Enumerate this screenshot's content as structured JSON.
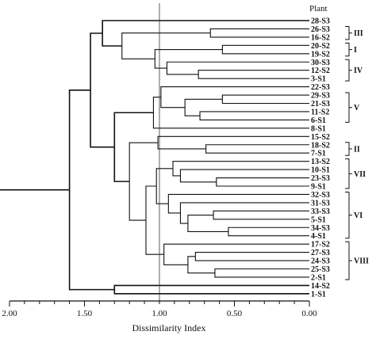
{
  "header": "Plant",
  "xlabel": "Dissimilarity Index",
  "ticks": [
    "2.00",
    "1.50",
    "1.00",
    "0.50",
    "0.00"
  ],
  "reference_value": 1.0,
  "chart_data": {
    "type": "dendrogram",
    "xlabel": "Dissimilarity Index",
    "xlim": [
      2.0,
      0.0
    ],
    "reference_line": 1.0,
    "leaves": [
      "28-S3",
      "26-S3",
      "16-S2",
      "20-S2",
      "19-S2",
      "30-S3",
      "12-S2",
      "3-S1",
      "22-S3",
      "29-S3",
      "21-S3",
      "11-S2",
      "6-S1",
      "8-S1",
      "15-S2",
      "18-S2",
      "7-S1",
      "13-S2",
      "10-S1",
      "23-S3",
      "9-S1",
      "32-S3",
      "31-S3",
      "33-S3",
      "5-S1",
      "34-S3",
      "4-S1",
      "17-S2",
      "27-S3",
      "24-S3",
      "25-S3",
      "2-S1",
      "14-S2",
      "1-S1"
    ],
    "groups": [
      {
        "label": "III",
        "from": 1,
        "to": 2
      },
      {
        "label": "I",
        "from": 3,
        "to": 4
      },
      {
        "label": "IV",
        "from": 5,
        "to": 7
      },
      {
        "label": "V",
        "from": 9,
        "to": 12
      },
      {
        "label": "II",
        "from": 15,
        "to": 16
      },
      {
        "label": "VII",
        "from": 17,
        "to": 20
      },
      {
        "label": "VI",
        "from": 21,
        "to": 26
      },
      {
        "label": "VIII",
        "from": 27,
        "to": 31
      }
    ],
    "merges": [
      {
        "a": "L1",
        "b": "L2",
        "h": 0.66
      },
      {
        "a": "L3",
        "b": "L4",
        "h": 0.58
      },
      {
        "a": "L6",
        "b": "L7",
        "h": 0.74
      },
      {
        "a": "L5",
        "b": "M3",
        "h": 0.95
      },
      {
        "a": "M2",
        "b": "M4",
        "h": 1.03
      },
      {
        "a": "M1",
        "b": "M5",
        "h": 1.25
      },
      {
        "a": "L0",
        "b": "M6",
        "h": 1.38
      },
      {
        "a": "L9",
        "b": "L10",
        "h": 0.58
      },
      {
        "a": "L11",
        "b": "L12",
        "h": 0.73
      },
      {
        "a": "M8",
        "b": "M9",
        "h": 0.83
      },
      {
        "a": "L8",
        "b": "M10",
        "h": 0.99
      },
      {
        "a": "M11",
        "b": "L13",
        "h": 1.04
      },
      {
        "a": "L15",
        "b": "L16",
        "h": 0.69
      },
      {
        "a": "L14",
        "b": "M13",
        "h": 1.01
      },
      {
        "a": "L19",
        "b": "L20",
        "h": 0.62
      },
      {
        "a": "L18",
        "b": "M15",
        "h": 0.86
      },
      {
        "a": "L17",
        "b": "M16",
        "h": 0.91
      },
      {
        "a": "L23",
        "b": "L24",
        "h": 0.64
      },
      {
        "a": "L25",
        "b": "L26",
        "h": 0.54
      },
      {
        "a": "M18",
        "b": "M19",
        "h": 0.81
      },
      {
        "a": "L22",
        "b": "M20",
        "h": 0.86
      },
      {
        "a": "L21",
        "b": "M21",
        "h": 0.94
      },
      {
        "a": "M17",
        "b": "M22",
        "h": 1.02
      },
      {
        "a": "L28",
        "b": "L29",
        "h": 0.76
      },
      {
        "a": "L30",
        "b": "L31",
        "h": 0.63
      },
      {
        "a": "M24",
        "b": "M25",
        "h": 0.81
      },
      {
        "a": "L27",
        "b": "M26",
        "h": 0.97
      },
      {
        "a": "M23",
        "b": "M27",
        "h": 1.09
      },
      {
        "a": "M14",
        "b": "M28",
        "h": 1.2
      },
      {
        "a": "M12",
        "b": "M29",
        "h": 1.3
      },
      {
        "a": "M7",
        "b": "M30",
        "h": 1.46
      },
      {
        "a": "L32",
        "b": "L33",
        "h": 1.3
      },
      {
        "a": "M31",
        "b": "M32",
        "h": 1.6
      }
    ]
  }
}
